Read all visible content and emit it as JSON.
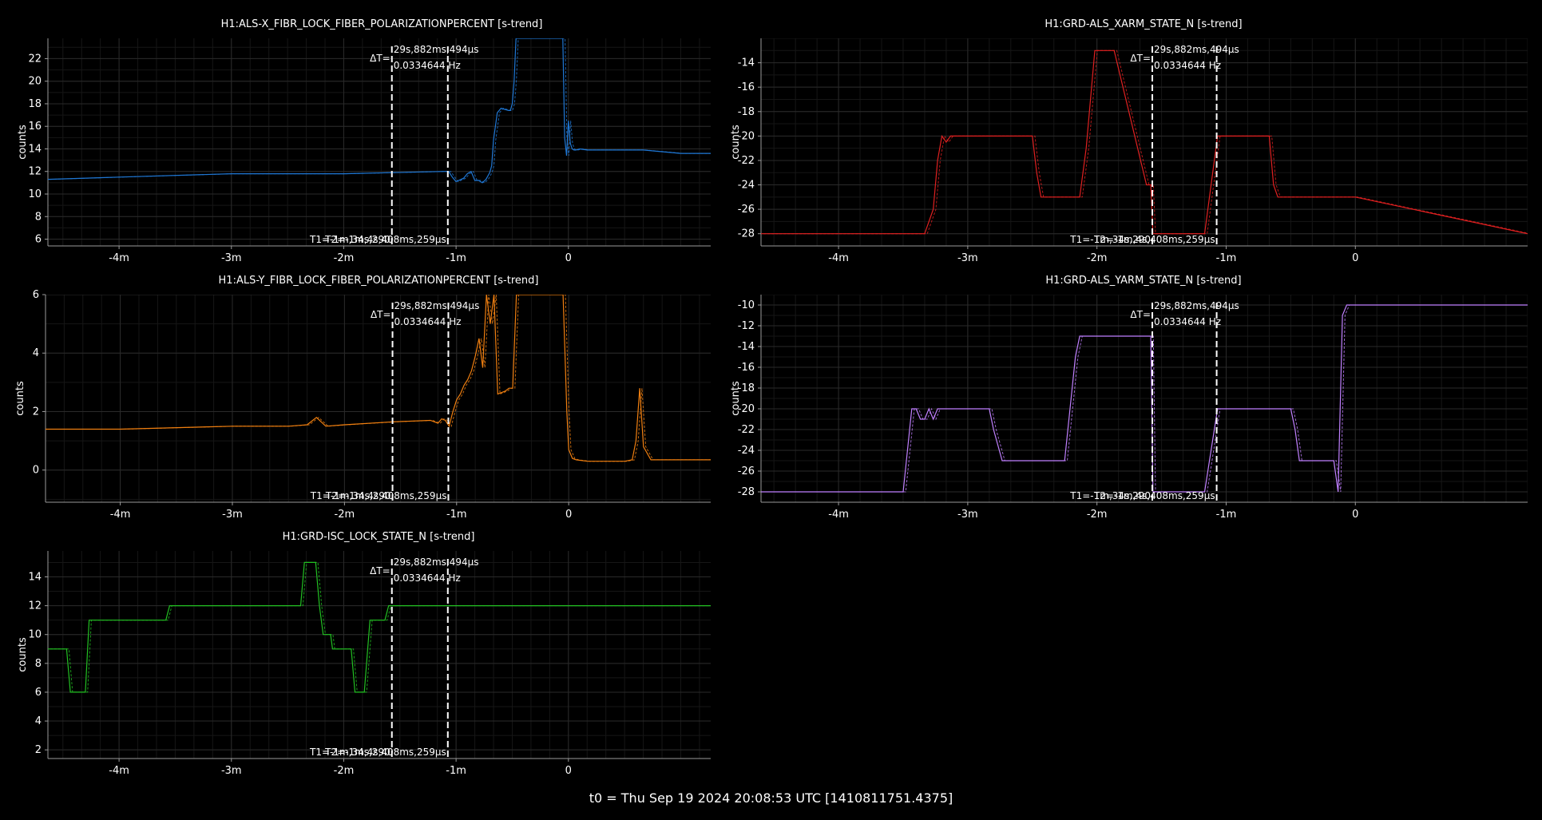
{
  "footer": "t0 = Thu Sep 19 2024 20:08:53 UTC [1410811751.4375]",
  "colors": {
    "background": "#000000",
    "grid": "#2a2a2a",
    "axis": "#9a9a9a",
    "text": "#ffffff",
    "cursor": "#ffffff"
  },
  "cursors": {
    "t1": -94.29,
    "t2": -64.41,
    "delta_label": "ΔT=",
    "delta": "29s,882ms,494µs",
    "freq": "0.0334644 Hz",
    "t1_label": "T1=-1m,34s,290",
    "t2_label": "T2=-1m,4s,408ms,259µs"
  },
  "chart_data": [
    {
      "type": "line",
      "title": "H1:ALS-X_FIBR_LOCK_FIBER_POLARIZATIONPERCENT [s-trend]",
      "ylabel": "counts",
      "xlim": [
        -278,
        76
      ],
      "ylim": [
        5.4,
        23.8
      ],
      "xticks": [
        -240,
        -180,
        -120,
        -60,
        0
      ],
      "xticklabels": [
        "-4m",
        "-3m",
        "-2m",
        "-1m",
        "0"
      ],
      "yticks": [
        6,
        8,
        10,
        12,
        14,
        16,
        18,
        20,
        22
      ],
      "color": "#1f77d4",
      "series": [
        {
          "x": [
            -278,
            -240,
            -180,
            -150,
            -120,
            -94,
            -66,
            -64,
            -62,
            -60,
            -56,
            -54,
            -52,
            -50,
            -48,
            -46,
            -44,
            -42,
            -41,
            -40,
            -39,
            -38,
            -36,
            -34,
            -32,
            -31,
            -30,
            -29,
            -28,
            -27,
            -26,
            -25,
            -5,
            -4,
            -3,
            -2,
            -1,
            0,
            1,
            2,
            3,
            4,
            6,
            10,
            20,
            40,
            60,
            76
          ],
          "y": [
            11.3,
            11.5,
            11.8,
            11.8,
            11.8,
            11.9,
            12.0,
            12.0,
            11.5,
            11.1,
            11.4,
            11.8,
            12.0,
            11.2,
            11.2,
            11.0,
            11.3,
            11.9,
            12.5,
            14.8,
            16.0,
            17.2,
            17.6,
            17.5,
            17.4,
            17.4,
            18.0,
            20.0,
            23.8,
            23.8,
            23.8,
            23.8,
            23.8,
            23.8,
            23.8,
            15.0,
            13.4,
            16.5,
            14.5,
            14.0,
            13.9,
            13.9,
            14.0,
            13.9,
            13.9,
            13.9,
            13.6,
            13.6
          ]
        }
      ]
    },
    {
      "type": "line",
      "title": "H1:GRD-ALS_XARM_STATE_N [s-trend]",
      "ylabel": "counts",
      "xlim": [
        -276,
        80
      ],
      "ylim": [
        -29.0,
        -12.0
      ],
      "xticks": [
        -240,
        -180,
        -120,
        -60,
        0
      ],
      "xticklabels": [
        "-4m",
        "-3m",
        "-2m",
        "-1m",
        "0"
      ],
      "yticks": [
        -14,
        -16,
        -18,
        -20,
        -22,
        -24,
        -26,
        -28
      ],
      "color": "#e02020",
      "series": [
        {
          "x": [
            -276,
            -200,
            -196,
            -194,
            -192,
            -190,
            -188,
            -186,
            -180,
            -174,
            -170,
            -150,
            -148,
            -146,
            -142,
            -140,
            -132,
            -128,
            -125,
            -121,
            -119,
            -117,
            -112,
            -97,
            -96,
            -95,
            -94,
            -70,
            -64,
            -60,
            -54,
            -40,
            -38,
            -36,
            -30,
            0,
            80
          ],
          "y": [
            -28,
            -28,
            -26,
            -22,
            -20,
            -20.5,
            -20,
            -20,
            -20,
            -20,
            -20,
            -20,
            -23,
            -25,
            -25,
            -25,
            -25,
            -25,
            -21,
            -13,
            -13,
            -13,
            -13,
            -24,
            -24,
            -24,
            -28,
            -28,
            -20,
            -20,
            -20,
            -20,
            -24,
            -25,
            -25,
            -25,
            -28
          ]
        }
      ]
    },
    {
      "type": "line",
      "title": "H1:ALS-Y_FIBR_LOCK_FIBER_POLARIZATIONPERCENT [s-trend]",
      "ylabel": "counts",
      "xlim": [
        -280,
        76
      ],
      "ylim": [
        -1.1,
        6.0
      ],
      "xticks": [
        -240,
        -180,
        -120,
        -60,
        0
      ],
      "xticklabels": [
        "-4m",
        "-3m",
        "-2m",
        "-1m",
        "0"
      ],
      "yticks": [
        0,
        2,
        4,
        6
      ],
      "color": "#f07f10",
      "series": [
        {
          "x": [
            -280,
            -240,
            -180,
            -150,
            -140,
            -135,
            -130,
            -120,
            -94,
            -74,
            -70,
            -68,
            -66,
            -64,
            -62,
            -60,
            -58,
            -56,
            -54,
            -52,
            -50,
            -48,
            -46,
            -44,
            -42,
            -40,
            -38,
            -34,
            -32,
            -30,
            -28,
            -26,
            -5,
            -3,
            -2,
            -1,
            0,
            2,
            4,
            10,
            20,
            30,
            34,
            36,
            38,
            40,
            44,
            60,
            76
          ],
          "y": [
            1.4,
            1.4,
            1.5,
            1.5,
            1.55,
            1.8,
            1.5,
            1.55,
            1.65,
            1.7,
            1.6,
            1.75,
            1.7,
            1.5,
            2.0,
            2.4,
            2.6,
            2.9,
            3.1,
            3.4,
            3.9,
            4.5,
            3.5,
            6.0,
            5.0,
            6.0,
            2.6,
            2.7,
            2.8,
            2.8,
            6.0,
            6.0,
            6.0,
            6.0,
            4.0,
            2.0,
            0.7,
            0.4,
            0.35,
            0.3,
            0.3,
            0.3,
            0.35,
            1.0,
            2.8,
            0.8,
            0.35,
            0.35,
            0.35
          ]
        }
      ]
    },
    {
      "type": "line",
      "title": "H1:GRD-ALS_YARM_STATE_N [s-trend]",
      "ylabel": "counts",
      "xlim": [
        -276,
        80
      ],
      "ylim": [
        -29.0,
        -9.0
      ],
      "xticks": [
        -240,
        -180,
        -120,
        -60,
        0
      ],
      "xticklabels": [
        "-4m",
        "-3m",
        "-2m",
        "-1m",
        "0"
      ],
      "yticks": [
        -10,
        -12,
        -14,
        -16,
        -18,
        -20,
        -22,
        -24,
        -26,
        -28
      ],
      "color": "#c080ff",
      "series": [
        {
          "x": [
            -276,
            -210,
            -206,
            -204,
            -202,
            -200,
            -198,
            -196,
            -194,
            -192,
            -190,
            -170,
            -168,
            -164,
            -140,
            -138,
            -135,
            -130,
            -128,
            -122,
            -120,
            -95,
            -94,
            -93,
            -70,
            -64,
            -60,
            -30,
            -28,
            -26,
            -24,
            -22,
            -20,
            -18,
            -16,
            -14,
            -12,
            -10,
            -8,
            -6,
            -4,
            -3,
            -2,
            -1,
            0,
            1,
            2,
            3,
            4,
            80
          ],
          "y": [
            -28,
            -28,
            -20,
            -20,
            -21,
            -21,
            -20,
            -21,
            -20,
            -20,
            -20,
            -20,
            -22,
            -25,
            -25,
            -25,
            -25,
            -15,
            -13,
            -13,
            -13,
            -13,
            -28,
            -28,
            -28,
            -20,
            -20,
            -20,
            -22,
            -25,
            -25,
            -25,
            -25,
            -25,
            -25,
            -25,
            -25,
            -25,
            -28,
            -11,
            -10,
            -10,
            -10,
            -10,
            -10,
            -10,
            -10,
            -10,
            -10,
            -10
          ]
        }
      ]
    },
    {
      "type": "line",
      "title": "H1:GRD-ISC_LOCK_STATE_N [s-trend]",
      "ylabel": "counts",
      "xlim": [
        -278,
        76
      ],
      "ylim": [
        1.4,
        15.8
      ],
      "xticks": [
        -240,
        -180,
        -120,
        -60,
        0
      ],
      "xticklabels": [
        "-4m",
        "-3m",
        "-2m",
        "-1m",
        "0"
      ],
      "yticks": [
        2,
        4,
        6,
        8,
        10,
        12,
        14
      ],
      "color": "#22c022",
      "series": [
        {
          "x": [
            -278,
            -268,
            -266,
            -258,
            -256,
            -248,
            -246,
            -215,
            -213,
            -150,
            -143,
            -141,
            -137,
            -135,
            -133,
            -131,
            -129,
            -127,
            -126,
            -124,
            -121,
            -116,
            -114,
            -111,
            -109,
            -106,
            -104,
            -98,
            -96,
            76
          ],
          "y": [
            9,
            9,
            6,
            6,
            11,
            11,
            11,
            11,
            12,
            12,
            12,
            15,
            15,
            15,
            12,
            10,
            10,
            10,
            9,
            9,
            9,
            9,
            6,
            6,
            6,
            11,
            11,
            11,
            12,
            12
          ]
        }
      ]
    }
  ]
}
